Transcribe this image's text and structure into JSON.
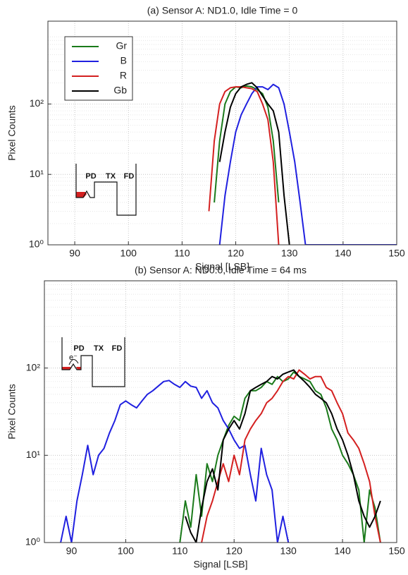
{
  "chart_data": [
    {
      "type": "line",
      "title": "(a) Sensor A: ND1.0, Idle Time = 0",
      "xlabel": "Signal [LSB]",
      "ylabel": "Pixel Counts",
      "xlim": [
        85,
        150
      ],
      "xticks": [
        90,
        100,
        110,
        120,
        130,
        140,
        150
      ],
      "ylim": [
        1,
        1500
      ],
      "log_y": true,
      "yticks": [
        {
          "value": 1,
          "label": "10⁰"
        },
        {
          "value": 10,
          "label": "10¹"
        },
        {
          "value": 100,
          "label": "10²"
        }
      ],
      "grid": true,
      "minor_grid": true,
      "legend": "upper left",
      "inset_labels": [
        "PD",
        "TX",
        "FD"
      ],
      "series": [
        {
          "name": "Gr",
          "color": "#1a7a1a",
          "x": [
            116,
            117,
            118,
            119,
            120,
            121,
            122,
            123,
            124,
            125,
            126,
            127,
            128
          ],
          "values": [
            4,
            30,
            100,
            150,
            175,
            170,
            180,
            175,
            160,
            140,
            90,
            30,
            4
          ]
        },
        {
          "name": "B",
          "color": "#2020e0",
          "x": [
            117,
            118,
            119,
            120,
            121,
            122,
            123,
            124,
            125,
            126,
            127,
            128,
            129,
            130,
            131,
            132,
            133,
            134,
            135,
            136,
            137,
            138,
            139,
            140,
            141,
            142,
            143,
            144,
            145,
            146,
            147,
            148,
            149,
            150
          ],
          "values": [
            1,
            5,
            15,
            40,
            70,
            100,
            140,
            175,
            175,
            160,
            190,
            170,
            100,
            40,
            15,
            4,
            1,
            1,
            1,
            1,
            1,
            1,
            1,
            1,
            1,
            1,
            1,
            1,
            1,
            1,
            1,
            1,
            1,
            1
          ]
        },
        {
          "name": "R",
          "color": "#d42020",
          "x": [
            115,
            116,
            117,
            118,
            119,
            120,
            121,
            122,
            123,
            124,
            125,
            126,
            127,
            128
          ],
          "values": [
            3,
            30,
            100,
            150,
            170,
            175,
            175,
            170,
            165,
            150,
            100,
            60,
            15,
            1
          ]
        },
        {
          "name": "Gb",
          "color": "#000000",
          "x": [
            117,
            118,
            119,
            120,
            121,
            122,
            123,
            124,
            125,
            126,
            127,
            128,
            129,
            130
          ],
          "values": [
            15,
            40,
            90,
            140,
            175,
            190,
            200,
            170,
            130,
            100,
            80,
            40,
            5,
            1
          ]
        }
      ]
    },
    {
      "type": "line",
      "title": "(b) Sensor A: ND0.0, Idle Time = 64 ms",
      "xlabel": "Signal [LSB]",
      "ylabel": "Pixel Counts",
      "xlim": [
        85,
        150
      ],
      "xticks": [
        90,
        100,
        110,
        120,
        130,
        140,
        150
      ],
      "ylim": [
        1,
        1000
      ],
      "log_y": true,
      "yticks": [
        {
          "value": 1,
          "label": "10⁰"
        },
        {
          "value": 10,
          "label": "10¹"
        },
        {
          "value": 100,
          "label": "10²"
        }
      ],
      "grid": true,
      "minor_grid": true,
      "inset_labels": [
        "PD",
        "TX",
        "FD",
        "e⁻"
      ],
      "series": [
        {
          "name": "Gr",
          "color": "#1a7a1a",
          "x": [
            110,
            111,
            112,
            113,
            114,
            115,
            116,
            117,
            118,
            119,
            120,
            121,
            122,
            123,
            124,
            125,
            126,
            127,
            128,
            129,
            130,
            131,
            132,
            133,
            134,
            135,
            136,
            137,
            138,
            139,
            140,
            141,
            142,
            143,
            144,
            145,
            146,
            147
          ],
          "values": [
            1,
            3,
            1.5,
            6,
            2,
            8,
            5,
            10,
            15,
            22,
            28,
            25,
            45,
            55,
            55,
            60,
            70,
            65,
            80,
            70,
            75,
            90,
            80,
            75,
            70,
            55,
            50,
            35,
            20,
            15,
            10,
            8,
            6,
            4,
            1,
            4,
            2.5,
            1
          ]
        },
        {
          "name": "B",
          "color": "#2020e0",
          "x": [
            88,
            89,
            90,
            91,
            92,
            93,
            94,
            95,
            96,
            97,
            98,
            99,
            100,
            101,
            102,
            103,
            104,
            105,
            106,
            107,
            108,
            109,
            110,
            111,
            112,
            113,
            114,
            115,
            116,
            117,
            118,
            119,
            120,
            121,
            122,
            123,
            124,
            125,
            126,
            127,
            128,
            129,
            130
          ],
          "values": [
            1,
            2,
            1,
            3,
            6,
            13,
            6,
            10,
            12,
            18,
            25,
            38,
            42,
            38,
            35,
            42,
            50,
            55,
            62,
            70,
            72,
            65,
            60,
            70,
            62,
            60,
            45,
            55,
            40,
            35,
            25,
            20,
            15,
            12,
            13,
            6,
            3,
            12,
            6,
            4,
            1,
            2,
            1
          ]
        },
        {
          "name": "R",
          "color": "#d42020",
          "x": [
            114,
            115,
            116,
            117,
            118,
            119,
            120,
            121,
            122,
            123,
            124,
            125,
            126,
            127,
            128,
            129,
            130,
            131,
            132,
            133,
            134,
            135,
            136,
            137,
            138,
            139,
            140,
            141,
            142,
            143,
            144,
            145,
            146,
            147
          ],
          "values": [
            1,
            2,
            3,
            5,
            8,
            5,
            10,
            6,
            15,
            20,
            25,
            30,
            40,
            45,
            55,
            70,
            80,
            75,
            95,
            85,
            75,
            80,
            80,
            60,
            55,
            40,
            30,
            18,
            15,
            12,
            8,
            5,
            2,
            1
          ]
        },
        {
          "name": "Gb",
          "color": "#000000",
          "x": [
            111,
            112,
            113,
            114,
            115,
            116,
            117,
            118,
            119,
            120,
            121,
            122,
            123,
            124,
            125,
            126,
            127,
            128,
            129,
            130,
            131,
            132,
            133,
            134,
            135,
            136,
            137,
            138,
            139,
            140,
            141,
            142,
            143,
            144,
            145,
            146,
            147
          ],
          "values": [
            2,
            1.3,
            1,
            2.5,
            5,
            7,
            4,
            15,
            20,
            25,
            20,
            30,
            55,
            60,
            65,
            70,
            80,
            75,
            85,
            90,
            95,
            80,
            70,
            60,
            50,
            45,
            40,
            30,
            20,
            15,
            10,
            6,
            3,
            2,
            1.5,
            2,
            3
          ]
        }
      ]
    }
  ]
}
